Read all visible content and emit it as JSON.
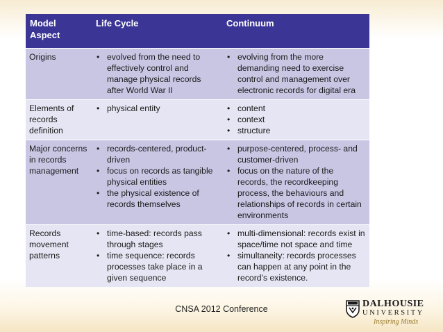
{
  "table": {
    "headers": [
      "Model\nAspect",
      "Life Cycle",
      "Continuum"
    ],
    "rows": [
      {
        "aspect": "Origins",
        "life_cycle": [
          "evolved from the need to effectively control and manage physical records after World War II"
        ],
        "continuum": [
          "evolving from the more demanding need to exercise control and management over electronic records for digital era"
        ]
      },
      {
        "aspect": "Elements of records definition",
        "life_cycle": [
          "physical entity"
        ],
        "continuum": [
          "content",
          "context",
          "structure"
        ]
      },
      {
        "aspect": "Major concerns in records management",
        "life_cycle": [
          "records-centered, product-driven",
          "focus on records as tangible physical entities",
          "the physical existence of records themselves"
        ],
        "continuum": [
          "purpose-centered, process- and customer-driven",
          "focus on the nature of the records, the recordkeeping process, the behaviours and relationships of records in certain environments"
        ]
      },
      {
        "aspect": "Records movement patterns",
        "life_cycle": [
          "time-based: records pass through stages",
          "time sequence: records processes take place in a given sequence"
        ],
        "continuum": [
          "multi-dimensional: records exist in space/time not space and time",
          "simultaneity: records processes can happen at any point in the record’s existence."
        ]
      }
    ]
  },
  "footer": {
    "conference": "CNSA 2012 Conference"
  },
  "logo": {
    "name_line1": "DALHOUSIE",
    "name_line2": "UNIVERSITY",
    "tagline": "Inspiring Minds"
  },
  "colors": {
    "header_bg": "#3b3596",
    "row_odd": "#c9c6e4",
    "row_even": "#e6e5f3",
    "tagline": "#9a7b2c"
  }
}
